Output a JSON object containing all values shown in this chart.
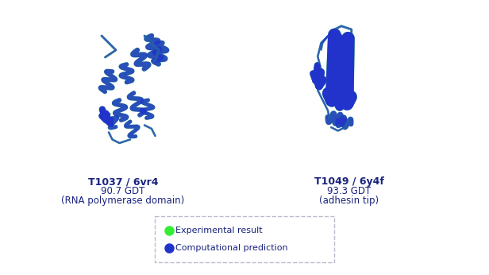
{
  "background_color": "#ffffff",
  "left_label_line1": "T1037 / 6vr4",
  "left_label_line2": "90.7 GDT",
  "left_label_line3": "(RNA polymerase domain)",
  "right_label_line1": "T1049 / 6y4f",
  "right_label_line2": "93.3 GDT",
  "right_label_line3": "(adhesin tip)",
  "legend_entry1": "Experimental result",
  "legend_entry2": "Computational prediction",
  "legend_color1": "#33ee33",
  "legend_color2": "#2233cc",
  "text_color": "#1a237e",
  "legend_border_color": "#bbbbcc",
  "green": "#33ee33",
  "blue": "#2233cc",
  "light_green": "#aaffaa",
  "light_blue": "#aaaaff"
}
